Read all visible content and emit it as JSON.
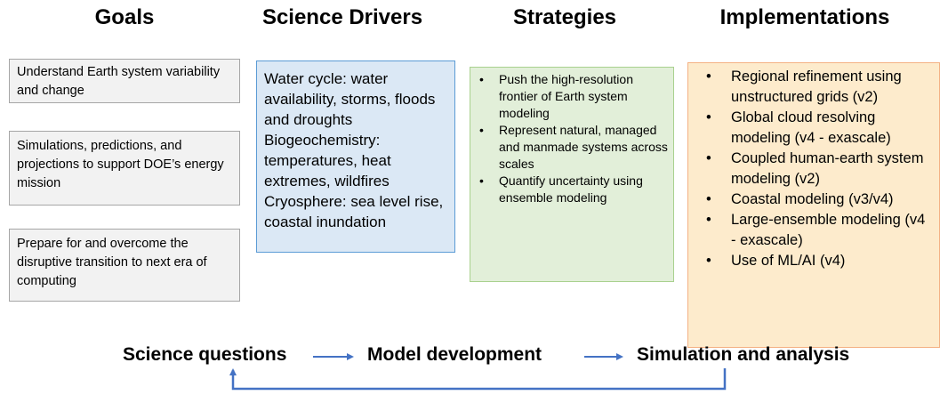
{
  "headers": {
    "goals": "Goals",
    "drivers": "Science Drivers",
    "strategies": "Strategies",
    "implementations": "Implementations"
  },
  "goals": [
    "Understand Earth system variability and change",
    "Simulations, predictions, and projections to support DOE’s energy mission",
    "Prepare for and overcome the disruptive transition to next era of computing"
  ],
  "drivers": [
    "Water cycle: water availability, storms, floods and droughts",
    "Biogeochemistry: temperatures, heat extremes, wildfires",
    "Cryosphere: sea level rise, coastal inundation"
  ],
  "strategies": [
    "Push the high-resolution frontier of Earth system modeling",
    "Represent natural, managed and manmade systems across scales",
    "Quantify uncertainty using ensemble modeling"
  ],
  "implementations": [
    "Regional refinement using unstructured grids (v2)",
    "Global cloud resolving modeling (v4 - exascale)",
    "Coupled human-earth system modeling (v2)",
    "Coastal modeling (v3/v4)",
    "Large-ensemble modeling (v4 - exascale)",
    "Use of ML/AI (v4)"
  ],
  "flow": [
    "Science questions",
    "Model development",
    "Simulation and analysis"
  ]
}
